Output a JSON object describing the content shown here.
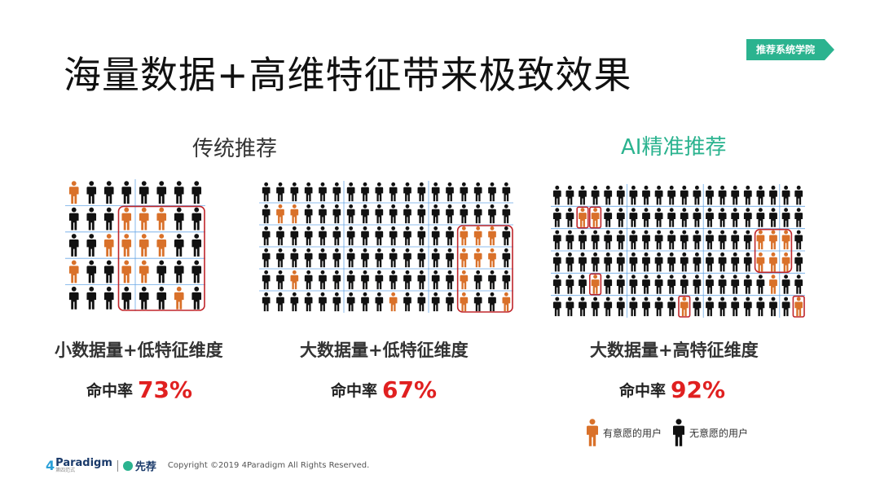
{
  "title": "海量数据+高维特征带来极致效果",
  "badge": "推荐系统学院",
  "colors": {
    "interested": "#d9712a",
    "uninterested": "#111111",
    "frame": "#c0262b",
    "grid": "#6aa8e6",
    "accent_green": "#2bb38f",
    "rate_red": "#e02020"
  },
  "panels": [
    {
      "heading": "传统推荐",
      "subtitle": "小数据量+低特征维度",
      "rate_label": "命中率",
      "rate_value": "73%",
      "rate_fraction": 0.73,
      "grid": {
        "rows": 5,
        "cols": 8
      },
      "orange": [
        [
          0,
          0
        ],
        [
          1,
          3
        ],
        [
          1,
          4
        ],
        [
          1,
          5
        ],
        [
          2,
          2
        ],
        [
          2,
          3
        ],
        [
          2,
          4
        ],
        [
          2,
          5
        ],
        [
          3,
          0
        ],
        [
          3,
          3
        ],
        [
          3,
          4
        ],
        [
          4,
          6
        ]
      ],
      "frames": [
        [
          1,
          3,
          4,
          7
        ]
      ]
    },
    {
      "heading": "",
      "subtitle": "大数据量+低特征维度",
      "rate_label": "命中率",
      "rate_value": "67%",
      "rate_fraction": 0.67,
      "grid": {
        "rows": 6,
        "cols": 18
      },
      "orange": [
        [
          1,
          1
        ],
        [
          1,
          2
        ],
        [
          2,
          14
        ],
        [
          2,
          15
        ],
        [
          2,
          16
        ],
        [
          3,
          14
        ],
        [
          3,
          15
        ],
        [
          3,
          16
        ],
        [
          4,
          2
        ],
        [
          4,
          14
        ],
        [
          5,
          9
        ],
        [
          5,
          14
        ],
        [
          5,
          17
        ]
      ],
      "frames": [
        [
          2,
          14,
          5,
          17
        ]
      ]
    },
    {
      "heading": "AI精准推荐",
      "subtitle": "大数据量+高特征维度",
      "rate_label": "命中率",
      "rate_value": "92%",
      "rate_fraction": 0.92,
      "grid": {
        "rows": 6,
        "cols": 20
      },
      "orange": [
        [
          1,
          2
        ],
        [
          1,
          3
        ],
        [
          2,
          16
        ],
        [
          2,
          17
        ],
        [
          2,
          18
        ],
        [
          3,
          16
        ],
        [
          3,
          17
        ],
        [
          3,
          18
        ],
        [
          4,
          3
        ],
        [
          4,
          17
        ],
        [
          5,
          10
        ],
        [
          5,
          19
        ]
      ],
      "frames": [
        [
          1,
          2,
          1,
          2
        ],
        [
          1,
          3,
          1,
          3
        ],
        [
          2,
          16,
          3,
          18
        ],
        [
          4,
          3,
          4,
          3
        ],
        [
          5,
          10,
          5,
          10
        ],
        [
          5,
          19,
          5,
          19
        ]
      ]
    }
  ],
  "legend": [
    {
      "label": "有意愿的用户",
      "color": "#d9712a"
    },
    {
      "label": "无意愿的用户",
      "color": "#111111"
    }
  ],
  "footer": {
    "logo_text": "Paradigm",
    "logo_number": "4",
    "logo_small": "第四范式",
    "brand2": "先荐",
    "copyright": "Copyright ©2019 4Paradigm All Rights Reserved."
  }
}
